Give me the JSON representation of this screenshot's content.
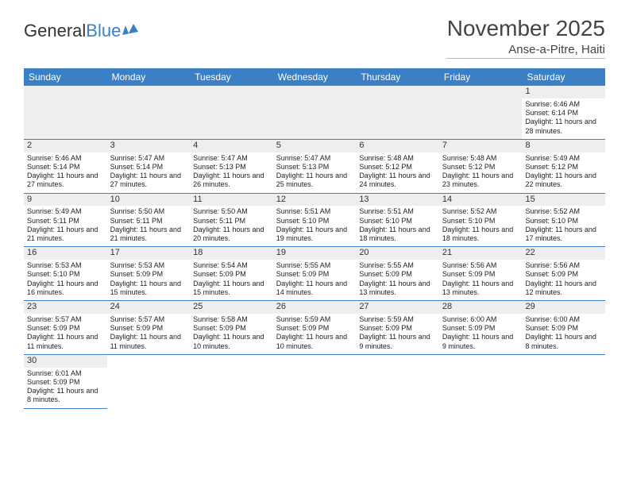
{
  "logo": {
    "text1": "General",
    "text2": "Blue"
  },
  "title": "November 2025",
  "location": "Anse-a-Pitre, Haiti",
  "colors": {
    "header_bg": "#3b7fc4",
    "header_text": "#ffffff",
    "row_border": "#3b7fc4",
    "blank_bg": "#eeeeee",
    "text": "#222222"
  },
  "days": [
    "Sunday",
    "Monday",
    "Tuesday",
    "Wednesday",
    "Thursday",
    "Friday",
    "Saturday"
  ],
  "weeks": [
    [
      null,
      null,
      null,
      null,
      null,
      null,
      {
        "n": "1",
        "sr": "Sunrise: 6:46 AM",
        "ss": "Sunset: 6:14 PM",
        "dl": "Daylight: 11 hours and 28 minutes."
      }
    ],
    [
      {
        "n": "2",
        "sr": "Sunrise: 5:46 AM",
        "ss": "Sunset: 5:14 PM",
        "dl": "Daylight: 11 hours and 27 minutes."
      },
      {
        "n": "3",
        "sr": "Sunrise: 5:47 AM",
        "ss": "Sunset: 5:14 PM",
        "dl": "Daylight: 11 hours and 27 minutes."
      },
      {
        "n": "4",
        "sr": "Sunrise: 5:47 AM",
        "ss": "Sunset: 5:13 PM",
        "dl": "Daylight: 11 hours and 26 minutes."
      },
      {
        "n": "5",
        "sr": "Sunrise: 5:47 AM",
        "ss": "Sunset: 5:13 PM",
        "dl": "Daylight: 11 hours and 25 minutes."
      },
      {
        "n": "6",
        "sr": "Sunrise: 5:48 AM",
        "ss": "Sunset: 5:12 PM",
        "dl": "Daylight: 11 hours and 24 minutes."
      },
      {
        "n": "7",
        "sr": "Sunrise: 5:48 AM",
        "ss": "Sunset: 5:12 PM",
        "dl": "Daylight: 11 hours and 23 minutes."
      },
      {
        "n": "8",
        "sr": "Sunrise: 5:49 AM",
        "ss": "Sunset: 5:12 PM",
        "dl": "Daylight: 11 hours and 22 minutes."
      }
    ],
    [
      {
        "n": "9",
        "sr": "Sunrise: 5:49 AM",
        "ss": "Sunset: 5:11 PM",
        "dl": "Daylight: 11 hours and 21 minutes."
      },
      {
        "n": "10",
        "sr": "Sunrise: 5:50 AM",
        "ss": "Sunset: 5:11 PM",
        "dl": "Daylight: 11 hours and 21 minutes."
      },
      {
        "n": "11",
        "sr": "Sunrise: 5:50 AM",
        "ss": "Sunset: 5:11 PM",
        "dl": "Daylight: 11 hours and 20 minutes."
      },
      {
        "n": "12",
        "sr": "Sunrise: 5:51 AM",
        "ss": "Sunset: 5:10 PM",
        "dl": "Daylight: 11 hours and 19 minutes."
      },
      {
        "n": "13",
        "sr": "Sunrise: 5:51 AM",
        "ss": "Sunset: 5:10 PM",
        "dl": "Daylight: 11 hours and 18 minutes."
      },
      {
        "n": "14",
        "sr": "Sunrise: 5:52 AM",
        "ss": "Sunset: 5:10 PM",
        "dl": "Daylight: 11 hours and 18 minutes."
      },
      {
        "n": "15",
        "sr": "Sunrise: 5:52 AM",
        "ss": "Sunset: 5:10 PM",
        "dl": "Daylight: 11 hours and 17 minutes."
      }
    ],
    [
      {
        "n": "16",
        "sr": "Sunrise: 5:53 AM",
        "ss": "Sunset: 5:10 PM",
        "dl": "Daylight: 11 hours and 16 minutes."
      },
      {
        "n": "17",
        "sr": "Sunrise: 5:53 AM",
        "ss": "Sunset: 5:09 PM",
        "dl": "Daylight: 11 hours and 15 minutes."
      },
      {
        "n": "18",
        "sr": "Sunrise: 5:54 AM",
        "ss": "Sunset: 5:09 PM",
        "dl": "Daylight: 11 hours and 15 minutes."
      },
      {
        "n": "19",
        "sr": "Sunrise: 5:55 AM",
        "ss": "Sunset: 5:09 PM",
        "dl": "Daylight: 11 hours and 14 minutes."
      },
      {
        "n": "20",
        "sr": "Sunrise: 5:55 AM",
        "ss": "Sunset: 5:09 PM",
        "dl": "Daylight: 11 hours and 13 minutes."
      },
      {
        "n": "21",
        "sr": "Sunrise: 5:56 AM",
        "ss": "Sunset: 5:09 PM",
        "dl": "Daylight: 11 hours and 13 minutes."
      },
      {
        "n": "22",
        "sr": "Sunrise: 5:56 AM",
        "ss": "Sunset: 5:09 PM",
        "dl": "Daylight: 11 hours and 12 minutes."
      }
    ],
    [
      {
        "n": "23",
        "sr": "Sunrise: 5:57 AM",
        "ss": "Sunset: 5:09 PM",
        "dl": "Daylight: 11 hours and 11 minutes."
      },
      {
        "n": "24",
        "sr": "Sunrise: 5:57 AM",
        "ss": "Sunset: 5:09 PM",
        "dl": "Daylight: 11 hours and 11 minutes."
      },
      {
        "n": "25",
        "sr": "Sunrise: 5:58 AM",
        "ss": "Sunset: 5:09 PM",
        "dl": "Daylight: 11 hours and 10 minutes."
      },
      {
        "n": "26",
        "sr": "Sunrise: 5:59 AM",
        "ss": "Sunset: 5:09 PM",
        "dl": "Daylight: 11 hours and 10 minutes."
      },
      {
        "n": "27",
        "sr": "Sunrise: 5:59 AM",
        "ss": "Sunset: 5:09 PM",
        "dl": "Daylight: 11 hours and 9 minutes."
      },
      {
        "n": "28",
        "sr": "Sunrise: 6:00 AM",
        "ss": "Sunset: 5:09 PM",
        "dl": "Daylight: 11 hours and 9 minutes."
      },
      {
        "n": "29",
        "sr": "Sunrise: 6:00 AM",
        "ss": "Sunset: 5:09 PM",
        "dl": "Daylight: 11 hours and 8 minutes."
      }
    ],
    [
      {
        "n": "30",
        "sr": "Sunrise: 6:01 AM",
        "ss": "Sunset: 5:09 PM",
        "dl": "Daylight: 11 hours and 8 minutes."
      },
      null,
      null,
      null,
      null,
      null,
      null
    ]
  ]
}
